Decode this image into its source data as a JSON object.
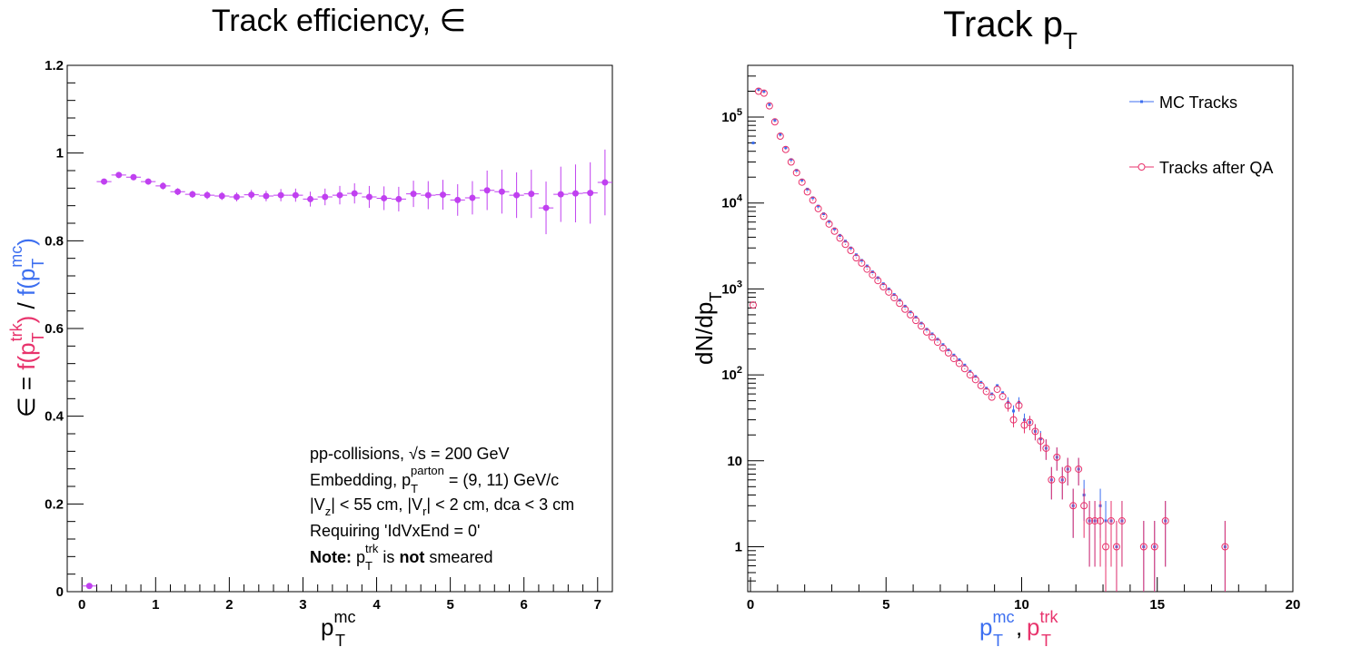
{
  "chart_data": [
    {
      "type": "scatter",
      "title": "Track efficiency, ∈",
      "xlabel": "p_T^mc",
      "ylabel": "∈ = f(p_T^trk) / f(p_T^mc)",
      "xlim": [
        -0.2,
        7.2
      ],
      "ylim": [
        0,
        1.2
      ],
      "xticks": [
        "0",
        "1",
        "2",
        "3",
        "4",
        "5",
        "6",
        "7"
      ],
      "yticks": [
        "0",
        "0.2",
        "0.4",
        "0.6",
        "0.8",
        "1",
        "1.2"
      ],
      "grid": false,
      "series": [
        {
          "color": "#c040f0",
          "x": [
            0.1,
            0.3,
            0.5,
            0.7,
            0.9,
            1.1,
            1.3,
            1.5,
            1.7,
            1.9,
            2.1,
            2.3,
            2.5,
            2.7,
            2.9,
            3.1,
            3.3,
            3.5,
            3.7,
            3.9,
            4.1,
            4.3,
            4.5,
            4.7,
            4.9,
            5.1,
            5.3,
            5.5,
            5.7,
            5.9,
            6.1,
            6.3,
            6.5,
            6.7,
            6.9,
            7.1
          ],
          "y": [
            0.013,
            0.935,
            0.95,
            0.945,
            0.935,
            0.925,
            0.912,
            0.906,
            0.904,
            0.902,
            0.9,
            0.905,
            0.902,
            0.904,
            0.904,
            0.895,
            0.9,
            0.904,
            0.908,
            0.9,
            0.897,
            0.895,
            0.907,
            0.904,
            0.905,
            0.893,
            0.898,
            0.915,
            0.912,
            0.904,
            0.907,
            0.875,
            0.906,
            0.908,
            0.909,
            0.933
          ],
          "err": [
            0.002,
            0.006,
            0.007,
            0.007,
            0.007,
            0.008,
            0.008,
            0.008,
            0.009,
            0.009,
            0.01,
            0.011,
            0.012,
            0.014,
            0.015,
            0.017,
            0.019,
            0.021,
            0.023,
            0.025,
            0.027,
            0.028,
            0.03,
            0.032,
            0.034,
            0.036,
            0.038,
            0.045,
            0.05,
            0.052,
            0.055,
            0.06,
            0.063,
            0.066,
            0.07,
            0.075
          ]
        }
      ],
      "annotations": [
        "pp-collisions, √s = 200 GeV",
        "Embedding, p_T^parton = (9, 11) GeV/c",
        "|V_z| < 55 cm, |V_r| < 2 cm, dca < 3 cm",
        "Requiring 'IdVxEnd = 0'",
        "Note: p_T^trk is not smeared"
      ]
    },
    {
      "type": "scatter",
      "title": "Track p_T",
      "xlabel": "p_T^mc, p_T^trk",
      "ylabel": "dN/dp_T",
      "xlim": [
        -0.1,
        20
      ],
      "ylim": [
        0.3,
        400000
      ],
      "yscale": "log",
      "xticks": [
        "0",
        "5",
        "10",
        "15",
        "20"
      ],
      "yticks": [
        "1",
        "10",
        "10^2",
        "10^3",
        "10^4",
        "10^5"
      ],
      "grid": false,
      "legend_position": "top-right",
      "legend": [
        "MC Tracks",
        "Tracks after QA"
      ],
      "series": [
        {
          "name": "MC Tracks",
          "color": "#3d6ff0",
          "x": [
            0.1,
            0.3,
            0.5,
            0.7,
            0.9,
            1.1,
            1.3,
            1.5,
            1.7,
            1.9,
            2.1,
            2.3,
            2.5,
            2.7,
            2.9,
            3.1,
            3.3,
            3.5,
            3.7,
            3.9,
            4.1,
            4.3,
            4.5,
            4.7,
            4.9,
            5.1,
            5.3,
            5.5,
            5.7,
            5.9,
            6.1,
            6.3,
            6.5,
            6.7,
            6.9,
            7.1,
            7.3,
            7.5,
            7.7,
            7.9,
            8.1,
            8.3,
            8.5,
            8.7,
            8.9,
            9.1,
            9.3,
            9.5,
            9.7,
            9.9,
            10.1,
            10.3,
            10.5,
            10.7,
            10.9,
            11.1,
            11.3,
            11.5,
            11.7,
            11.9,
            12.1,
            12.3,
            12.5,
            12.7,
            12.9,
            13.1,
            13.3,
            13.5,
            13.7,
            14.5,
            14.9,
            15.3,
            17.5
          ],
          "y": [
            50000,
            210000,
            200000,
            140000,
            92000,
            63000,
            44000,
            32000,
            24000,
            18500,
            14500,
            11500,
            9200,
            7500,
            6100,
            5000,
            4200,
            3600,
            3000,
            2500,
            2150,
            1850,
            1580,
            1350,
            1150,
            1000,
            860,
            740,
            630,
            540,
            470,
            400,
            340,
            300,
            260,
            225,
            195,
            170,
            150,
            130,
            110,
            96,
            82,
            70,
            60,
            75,
            62,
            48,
            38,
            48,
            30,
            28,
            22,
            18,
            14,
            6,
            11,
            6,
            8,
            3,
            8,
            4,
            2,
            2,
            3,
            2,
            2,
            1,
            2,
            1,
            1,
            2,
            1
          ],
          "err_rel": 0.2
        },
        {
          "name": "Tracks after QA",
          "color": "#e8336c",
          "x": [
            0.1,
            0.3,
            0.5,
            0.7,
            0.9,
            1.1,
            1.3,
            1.5,
            1.7,
            1.9,
            2.1,
            2.3,
            2.5,
            2.7,
            2.9,
            3.1,
            3.3,
            3.5,
            3.7,
            3.9,
            4.1,
            4.3,
            4.5,
            4.7,
            4.9,
            5.1,
            5.3,
            5.5,
            5.7,
            5.9,
            6.1,
            6.3,
            6.5,
            6.7,
            6.9,
            7.1,
            7.3,
            7.5,
            7.7,
            7.9,
            8.1,
            8.3,
            8.5,
            8.7,
            8.9,
            9.1,
            9.3,
            9.5,
            9.7,
            9.9,
            10.1,
            10.3,
            10.5,
            10.7,
            10.9,
            11.1,
            11.3,
            11.5,
            11.7,
            11.9,
            12.1,
            12.3,
            12.5,
            12.7,
            12.9,
            13.1,
            13.3,
            13.5,
            13.7,
            14.5,
            14.9,
            15.3,
            17.5
          ],
          "y": [
            650,
            200000,
            190000,
            135000,
            88000,
            60000,
            42000,
            30000,
            22500,
            17500,
            13500,
            10800,
            8600,
            7000,
            5700,
            4700,
            3900,
            3300,
            2800,
            2300,
            2000,
            1700,
            1460,
            1250,
            1060,
            920,
            790,
            680,
            580,
            500,
            430,
            370,
            315,
            275,
            240,
            205,
            180,
            155,
            136,
            118,
            100,
            88,
            75,
            64,
            55,
            68,
            56,
            44,
            30,
            44,
            26,
            28,
            22,
            17,
            14,
            6,
            11,
            6,
            8,
            3,
            8,
            3,
            2,
            2,
            2,
            1,
            2,
            1,
            2,
            1,
            1,
            2,
            1
          ],
          "err_rel": 0.25
        }
      ]
    }
  ]
}
